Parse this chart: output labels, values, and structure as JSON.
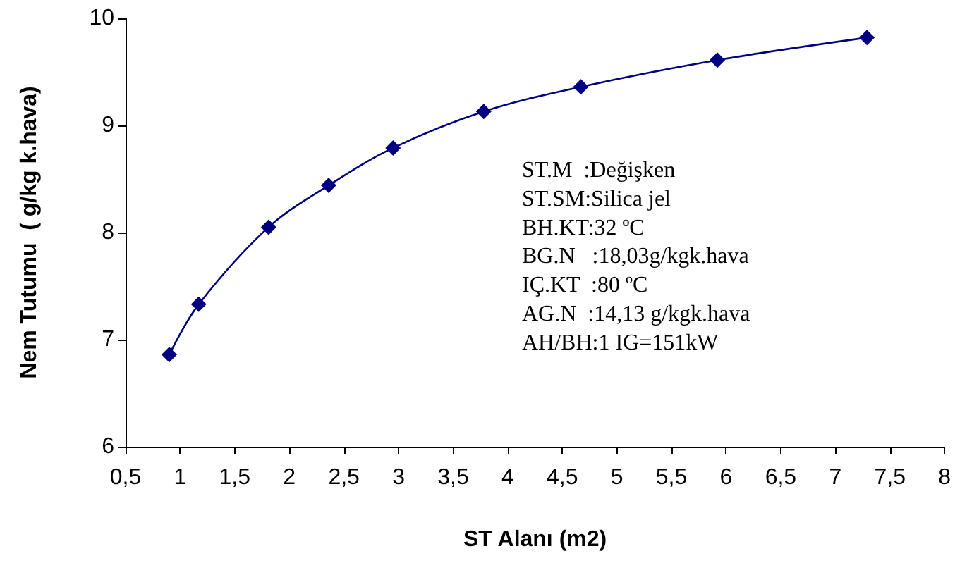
{
  "chart_data": {
    "type": "line",
    "xlabel": "ST Alanı (m2)",
    "ylabel": "Nem Tutumu  ( g/kg k.hava)",
    "x": [
      0.9,
      1.17,
      1.81,
      2.36,
      2.95,
      3.78,
      4.67,
      5.92,
      7.29
    ],
    "series": [
      {
        "color": "#000080",
        "values": [
          6.86,
          7.33,
          8.05,
          8.44,
          8.79,
          9.13,
          9.36,
          9.61,
          9.82
        ]
      }
    ],
    "xlim": [
      0.5,
      8
    ],
    "xticks": [
      {
        "value": 0.5,
        "label": "0,5"
      },
      1,
      {
        "value": 1.5,
        "label": "1,5"
      },
      2,
      {
        "value": 2.5,
        "label": "2,5"
      },
      3,
      {
        "value": 3.5,
        "label": "3,5"
      },
      4,
      {
        "value": 4.5,
        "label": "4,5"
      },
      5,
      {
        "value": 5.5,
        "label": "5,5"
      },
      6,
      {
        "value": 6.5,
        "label": "6,5"
      },
      7,
      {
        "value": 7.5,
        "label": "7,5"
      },
      8
    ],
    "ylim": [
      6,
      10
    ],
    "yticks": [
      6,
      7,
      8,
      9,
      10
    ],
    "annotations": [
      "ST.M  :Değişken",
      "ST.SM:Silica jel",
      "BH.KT:32 ºC",
      "BG.N   :18,03g/kgk.hava",
      "IÇ.KT  :80 ºC",
      "AG.N  :14,13 g/kgk.hava",
      "AH/BH:1 IG=151kW"
    ],
    "marker": "diamond",
    "line_style": "solid"
  }
}
